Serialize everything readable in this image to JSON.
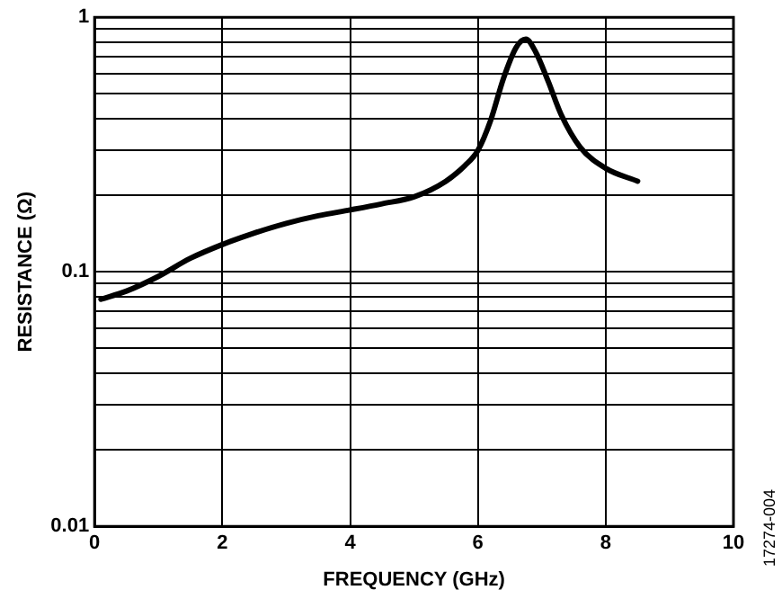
{
  "chart_data": {
    "type": "line",
    "xlabel": "FREQUENCY (GHz)",
    "ylabel": "RESISTANCE (Ω)",
    "log": "y",
    "grid": true,
    "legend": false,
    "marker": "none",
    "line_style": "solid",
    "annotations": [
      "17274-004"
    ],
    "xlim": [
      0,
      10
    ],
    "xticks": [
      0,
      2,
      4,
      6,
      8,
      10
    ],
    "ylim": [
      0.01,
      1
    ],
    "yticks": [
      0.01,
      {
        "value": 0.02,
        "label": null
      },
      {
        "value": 0.03,
        "label": null
      },
      {
        "value": 0.04,
        "label": null
      },
      {
        "value": 0.05,
        "label": null
      },
      {
        "value": 0.06,
        "label": null
      },
      {
        "value": 0.07,
        "label": null
      },
      {
        "value": 0.08,
        "label": null
      },
      {
        "value": 0.09,
        "label": null
      },
      0.1,
      {
        "value": 0.2,
        "label": null
      },
      {
        "value": 0.3,
        "label": null
      },
      {
        "value": 0.4,
        "label": null
      },
      {
        "value": 0.5,
        "label": null
      },
      {
        "value": 0.6,
        "label": null
      },
      {
        "value": 0.7,
        "label": null
      },
      {
        "value": 0.8,
        "label": null
      },
      {
        "value": 0.9,
        "label": null
      },
      1
    ],
    "series": [
      {
        "color": "#000000",
        "x": [
          0.1,
          0.5,
          1,
          1.5,
          2,
          2.5,
          3,
          3.5,
          4,
          4.5,
          5,
          5.5,
          5.8,
          6,
          6.2,
          6.4,
          6.6,
          6.75,
          6.9,
          7.1,
          7.3,
          7.6,
          8,
          8.5
        ],
        "values": [
          0.078,
          0.084,
          0.096,
          0.113,
          0.128,
          0.142,
          0.155,
          0.166,
          0.175,
          0.185,
          0.197,
          0.227,
          0.262,
          0.3,
          0.394,
          0.575,
          0.762,
          0.82,
          0.734,
          0.56,
          0.416,
          0.309,
          0.255,
          0.227
        ]
      }
    ]
  }
}
